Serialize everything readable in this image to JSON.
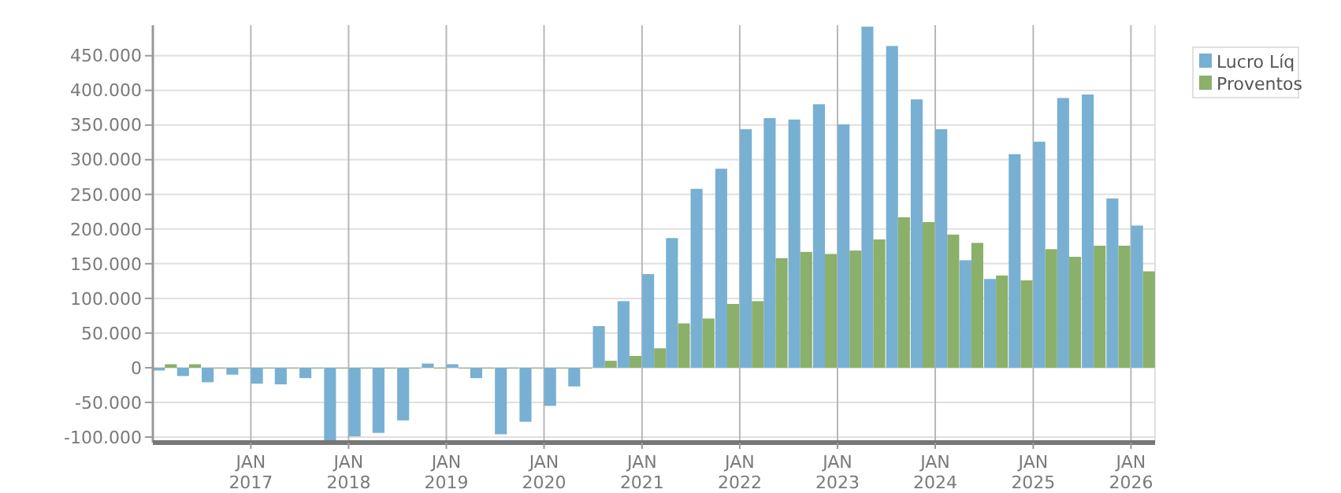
{
  "chart_data": {
    "type": "bar",
    "x": [
      "2016-02-15",
      "2016-05-15",
      "2016-08-15",
      "2016-11-15",
      "2017-02-15",
      "2017-05-15",
      "2017-08-15",
      "2017-11-15",
      "2018-02-15",
      "2018-05-15",
      "2018-08-15",
      "2018-11-15",
      "2019-02-15",
      "2019-05-15",
      "2019-08-15",
      "2019-11-15",
      "2020-02-15",
      "2020-05-15",
      "2020-08-15",
      "2020-11-15",
      "2021-02-15",
      "2021-05-15",
      "2021-08-15",
      "2021-11-15",
      "2022-02-15",
      "2022-05-15",
      "2022-08-15",
      "2022-11-15",
      "2023-02-15",
      "2023-05-15",
      "2023-08-15",
      "2023-11-15",
      "2024-02-15",
      "2024-05-15",
      "2024-08-15",
      "2024-11-15",
      "2025-02-15",
      "2025-05-15",
      "2025-08-15",
      "2025-11-15",
      "2026-02-15"
    ],
    "series": [
      {
        "name": "Lucro Líq",
        "color": "#77b0d2",
        "values": [
          -4000,
          -12000,
          -21000,
          -10000,
          -23000,
          -24000,
          -15000,
          -106000,
          -99000,
          -94000,
          -76000,
          6000,
          5000,
          -15000,
          -96000,
          -78000,
          -55000,
          -27000,
          60000,
          96000,
          135000,
          187000,
          258000,
          287000,
          344000,
          360000,
          358000,
          380000,
          351000,
          492000,
          464000,
          387000,
          344000,
          155000,
          128000,
          308000,
          326000,
          389000,
          394000,
          244000,
          205000
        ]
      },
      {
        "name": "Proventos",
        "color": "#8bb06a",
        "values": [
          5000,
          5000,
          0,
          0,
          0,
          0,
          0,
          0,
          0,
          0,
          0,
          0,
          0,
          0,
          0,
          0,
          0,
          0,
          10000,
          17000,
          28000,
          64000,
          71000,
          92000,
          96000,
          158000,
          167000,
          164000,
          169000,
          185000,
          217000,
          210000,
          192000,
          180000,
          133000,
          126000,
          171000,
          160000,
          176000,
          176000,
          139000
        ]
      }
    ],
    "xlim": [
      "2016-01-01",
      "2026-04-01"
    ],
    "xticks": [
      {
        "value": "2017-01-01",
        "label": "JAN 2017"
      },
      {
        "value": "2018-01-01",
        "label": "JAN 2018"
      },
      {
        "value": "2019-01-01",
        "label": "JAN 2019"
      },
      {
        "value": "2020-01-01",
        "label": "JAN 2020"
      },
      {
        "value": "2021-01-01",
        "label": "JAN 2021"
      },
      {
        "value": "2022-01-01",
        "label": "JAN 2022"
      },
      {
        "value": "2023-01-01",
        "label": "JAN 2023"
      },
      {
        "value": "2024-01-01",
        "label": "JAN 2024"
      },
      {
        "value": "2025-01-01",
        "label": "JAN 2025"
      },
      {
        "value": "2026-01-01",
        "label": "JAN 2026"
      }
    ],
    "ylim": [
      -108000,
      494000
    ],
    "yticks": [
      {
        "value": -100000,
        "label": "-100.000"
      },
      {
        "value": -50000,
        "label": "-50.000"
      },
      0,
      {
        "value": 50000,
        "label": "50.000"
      },
      {
        "value": 100000,
        "label": "100.000"
      },
      {
        "value": 150000,
        "label": "150.000"
      },
      {
        "value": 200000,
        "label": "200.000"
      },
      {
        "value": 250000,
        "label": "250.000"
      },
      {
        "value": 300000,
        "label": "300.000"
      },
      {
        "value": 350000,
        "label": "350.000"
      },
      {
        "value": 400000,
        "label": "400.000"
      },
      {
        "value": 450000,
        "label": "450.000"
      }
    ],
    "grid": true,
    "legend": "top right"
  }
}
